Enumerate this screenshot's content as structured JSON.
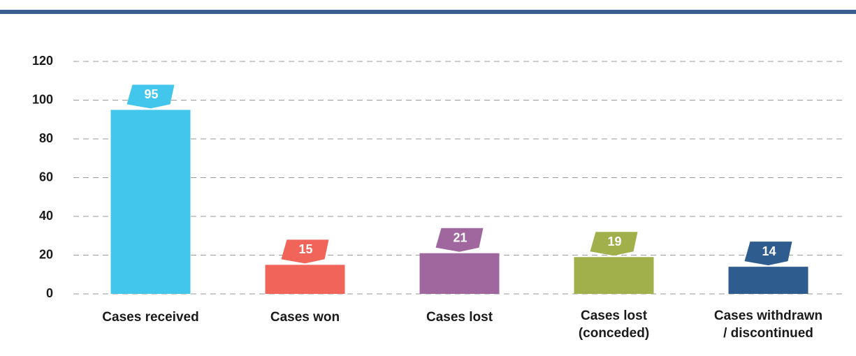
{
  "chart_data": {
    "type": "bar",
    "categories": [
      "Cases received",
      "Cases won",
      "Cases lost",
      "Cases lost\n(conceded)",
      "Cases withdrawn\n/ discontinued"
    ],
    "values": [
      95,
      15,
      21,
      19,
      14
    ],
    "colors": [
      "#43c6ec",
      "#f1645a",
      "#a0679e",
      "#a1b04b",
      "#2e5c8f"
    ],
    "ylim": [
      0,
      120
    ],
    "yticks": [
      0,
      20,
      40,
      60,
      80,
      100,
      120
    ],
    "grid": true
  }
}
